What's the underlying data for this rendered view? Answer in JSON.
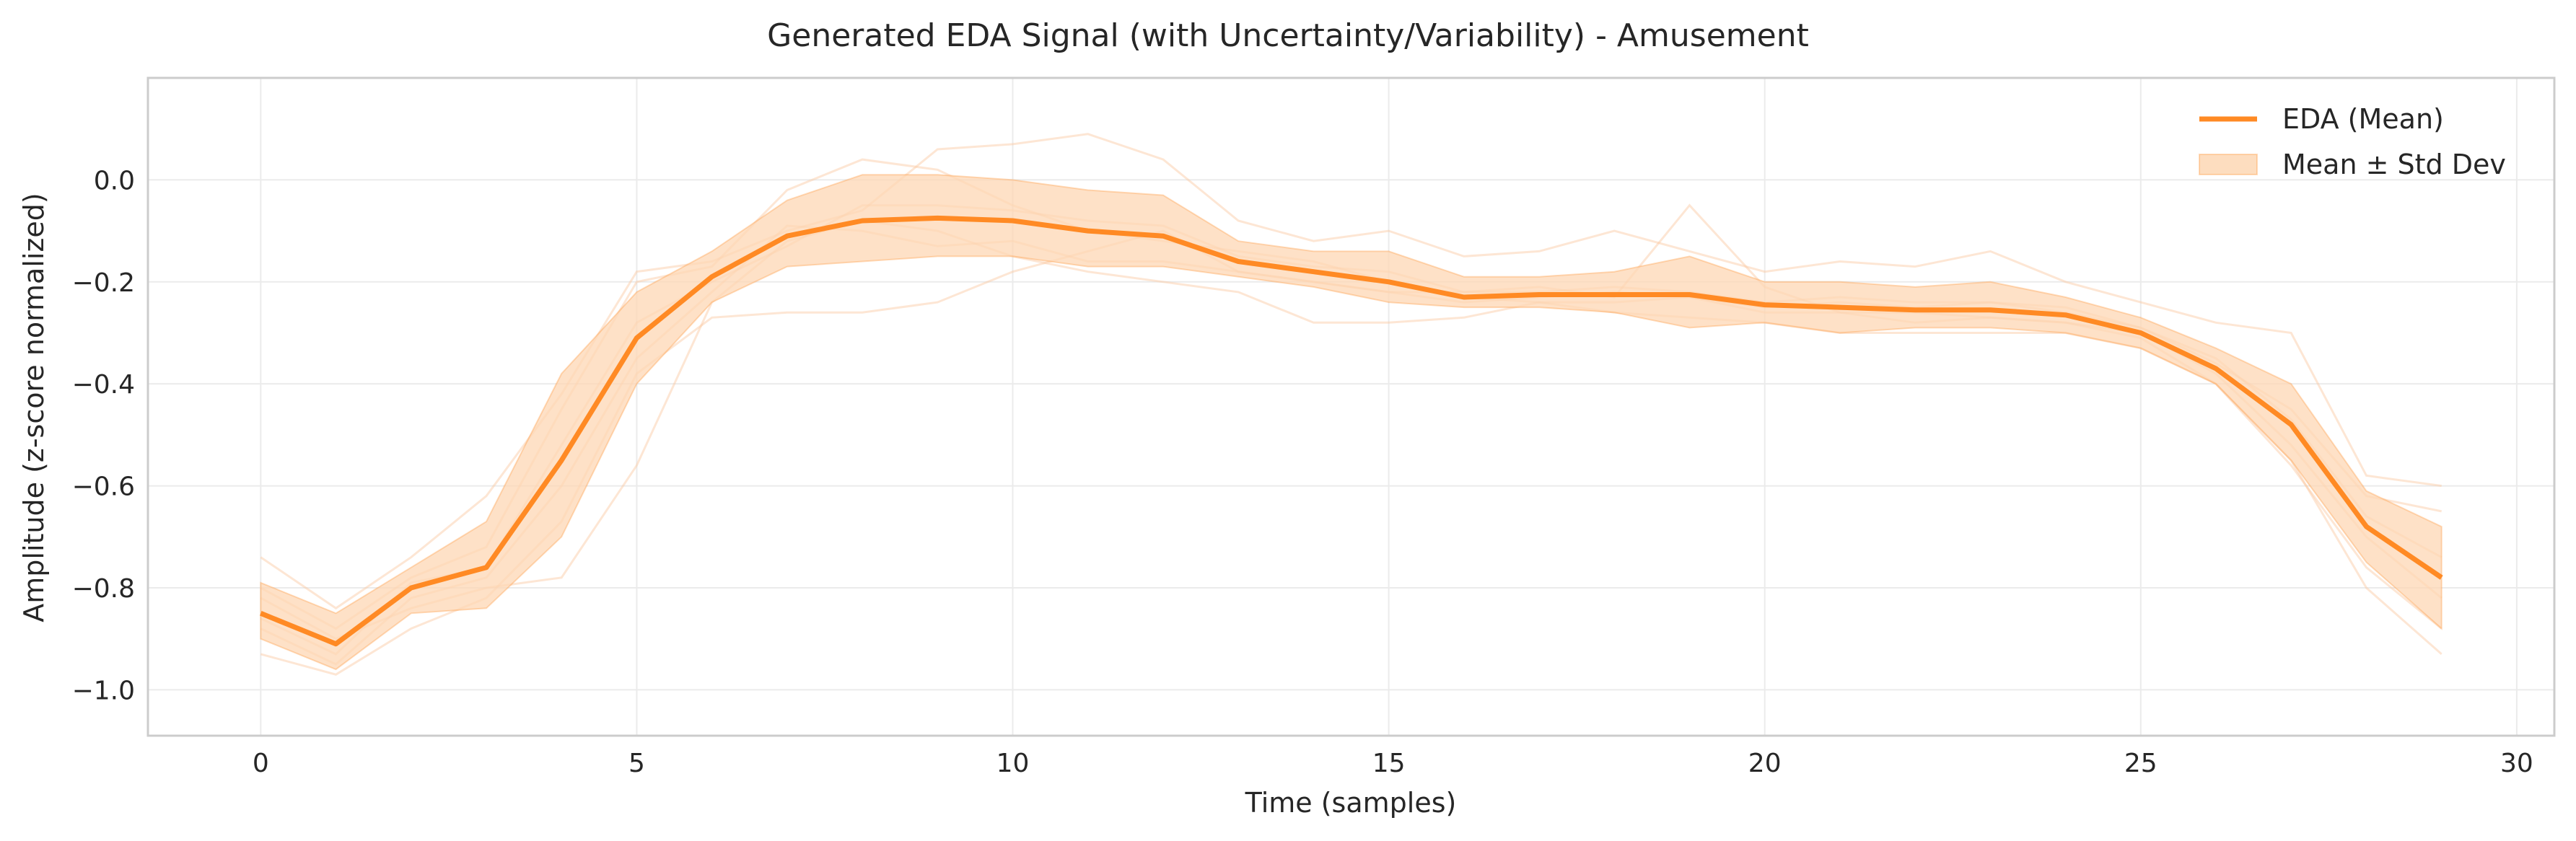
{
  "chart_data": {
    "type": "line",
    "title": "Generated EDA Signal (with Uncertainty/Variability) - Amusement",
    "xlabel": "Time (samples)",
    "ylabel": "Amplitude (z-score normalized)",
    "xlim": [
      -1.5,
      30.5
    ],
    "ylim": [
      -1.09,
      0.2
    ],
    "xticks": [
      0,
      5,
      10,
      15,
      20,
      25,
      30
    ],
    "yticks": [
      -1.0,
      -0.8,
      -0.6,
      -0.4,
      -0.2,
      0.0
    ],
    "ytick_labels": [
      "−1.0",
      "−0.8",
      "−0.6",
      "−0.4",
      "−0.2",
      "0.0"
    ],
    "grid": true,
    "legend_position": "top-right",
    "colors": {
      "mean": "#ff8a24",
      "band": "#fdd7b4",
      "samples": "#fbc8a0"
    },
    "x": [
      0,
      1,
      2,
      3,
      4,
      5,
      6,
      7,
      8,
      9,
      10,
      11,
      12,
      13,
      14,
      15,
      16,
      17,
      18,
      19,
      20,
      21,
      22,
      23,
      24,
      25,
      26,
      27,
      28,
      29
    ],
    "series": [
      {
        "name": "EDA (Mean)",
        "values": [
          -0.85,
          -0.91,
          -0.8,
          -0.76,
          -0.55,
          -0.31,
          -0.19,
          -0.11,
          -0.08,
          -0.075,
          -0.08,
          -0.1,
          -0.11,
          -0.16,
          -0.18,
          -0.2,
          -0.23,
          -0.225,
          -0.225,
          -0.225,
          -0.245,
          -0.25,
          -0.255,
          -0.255,
          -0.265,
          -0.3,
          -0.37,
          -0.48,
          -0.68,
          -0.78
        ]
      },
      {
        "name": "Mean ± Std Dev",
        "lower": [
          -0.9,
          -0.96,
          -0.85,
          -0.84,
          -0.7,
          -0.4,
          -0.24,
          -0.17,
          -0.16,
          -0.15,
          -0.15,
          -0.17,
          -0.17,
          -0.19,
          -0.21,
          -0.24,
          -0.25,
          -0.25,
          -0.26,
          -0.29,
          -0.28,
          -0.3,
          -0.29,
          -0.29,
          -0.3,
          -0.33,
          -0.4,
          -0.55,
          -0.75,
          -0.88
        ],
        "upper": [
          -0.79,
          -0.85,
          -0.76,
          -0.67,
          -0.38,
          -0.22,
          -0.14,
          -0.04,
          0.01,
          0.01,
          0.0,
          -0.02,
          -0.03,
          -0.12,
          -0.14,
          -0.14,
          -0.19,
          -0.19,
          -0.18,
          -0.15,
          -0.2,
          -0.2,
          -0.21,
          -0.2,
          -0.23,
          -0.27,
          -0.33,
          -0.4,
          -0.61,
          -0.68
        ]
      }
    ],
    "samples": [
      [
        -0.8,
        -0.88,
        -0.78,
        -0.72,
        -0.45,
        -0.2,
        -0.17,
        -0.02,
        0.04,
        0.02,
        -0.05,
        -0.1,
        -0.12,
        -0.14,
        -0.16,
        -0.2,
        -0.23,
        -0.24,
        -0.24,
        -0.23,
        -0.26,
        -0.26,
        -0.26,
        -0.27,
        -0.28,
        -0.3,
        -0.38,
        -0.52,
        -0.7,
        -0.82
      ],
      [
        -0.93,
        -0.97,
        -0.88,
        -0.82,
        -0.67,
        -0.38,
        -0.27,
        -0.26,
        -0.26,
        -0.24,
        -0.18,
        -0.14,
        -0.1,
        -0.18,
        -0.2,
        -0.22,
        -0.24,
        -0.23,
        -0.22,
        -0.23,
        -0.25,
        -0.24,
        -0.25,
        -0.24,
        -0.26,
        -0.29,
        -0.36,
        -0.45,
        -0.62,
        -0.65
      ],
      [
        -0.74,
        -0.84,
        -0.74,
        -0.62,
        -0.42,
        -0.18,
        -0.16,
        -0.1,
        -0.06,
        0.06,
        0.07,
        0.09,
        0.04,
        -0.08,
        -0.12,
        -0.1,
        -0.15,
        -0.14,
        -0.1,
        -0.14,
        -0.18,
        -0.16,
        -0.17,
        -0.14,
        -0.2,
        -0.24,
        -0.28,
        -0.3,
        -0.58,
        -0.6
      ],
      [
        -0.88,
        -0.95,
        -0.82,
        -0.78,
        -0.6,
        -0.35,
        -0.22,
        -0.09,
        -0.1,
        -0.13,
        -0.12,
        -0.16,
        -0.16,
        -0.18,
        -0.2,
        -0.22,
        -0.22,
        -0.21,
        -0.23,
        -0.05,
        -0.21,
        -0.26,
        -0.28,
        -0.27,
        -0.28,
        -0.31,
        -0.4,
        -0.55,
        -0.8,
        -0.93
      ],
      [
        -0.82,
        -0.9,
        -0.84,
        -0.8,
        -0.78,
        -0.56,
        -0.24,
        -0.12,
        -0.08,
        -0.1,
        -0.15,
        -0.18,
        -0.2,
        -0.22,
        -0.28,
        -0.28,
        -0.27,
        -0.24,
        -0.26,
        -0.27,
        -0.28,
        -0.3,
        -0.3,
        -0.3,
        -0.3,
        -0.33,
        -0.4,
        -0.56,
        -0.76,
        -0.88
      ],
      [
        -0.86,
        -0.93,
        -0.79,
        -0.76,
        -0.52,
        -0.28,
        -0.2,
        -0.13,
        -0.05,
        -0.05,
        -0.06,
        -0.08,
        -0.09,
        -0.15,
        -0.17,
        -0.18,
        -0.22,
        -0.22,
        -0.21,
        -0.22,
        -0.24,
        -0.23,
        -0.24,
        -0.24,
        -0.25,
        -0.29,
        -0.35,
        -0.47,
        -0.66,
        -0.74
      ]
    ]
  }
}
